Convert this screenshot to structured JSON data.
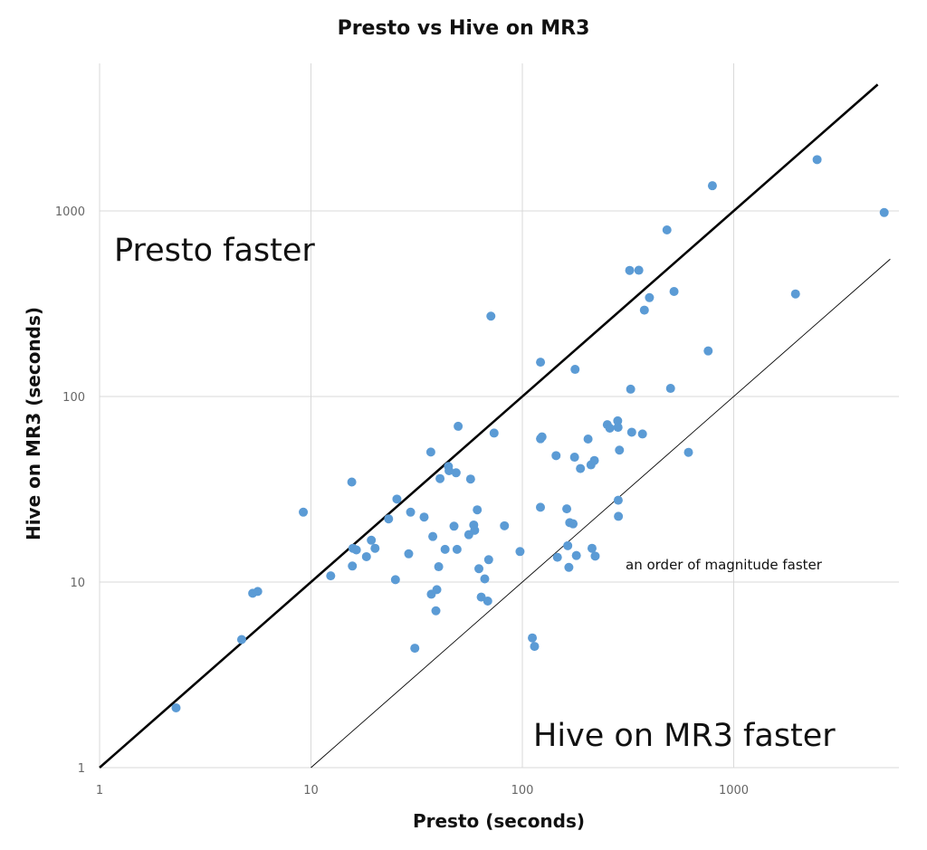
{
  "chart_data": {
    "type": "scatter",
    "title": "Presto vs Hive on MR3",
    "xlabel": "Presto (seconds)",
    "ylabel": "Hive on MR3 (seconds)",
    "xscale": "log",
    "yscale": "log",
    "xlim": [
      1,
      5500
    ],
    "ylim": [
      1,
      5000
    ],
    "x_ticks": [
      "1",
      "10",
      "100",
      "1000"
    ],
    "y_ticks": [
      "1",
      "10",
      "100",
      "1000"
    ],
    "grid": true,
    "legend": "none",
    "reference_lines": [
      {
        "description": "y = x",
        "points": [
          [
            1,
            1
          ],
          [
            4800,
            4800
          ]
        ]
      },
      {
        "description": "y = x / 10",
        "points": [
          [
            10,
            1
          ],
          [
            5500,
            550
          ]
        ]
      }
    ],
    "annotations": [
      {
        "text": "Presto faster"
      },
      {
        "text": "Hive on MR3 faster"
      },
      {
        "text": "an order of magnitude faster"
      }
    ],
    "points": [
      [
        2.3,
        2.1
      ],
      [
        4.7,
        4.9
      ],
      [
        5.3,
        8.7
      ],
      [
        5.6,
        8.9
      ],
      [
        9.2,
        23.8
      ],
      [
        12.4,
        10.8
      ],
      [
        15.6,
        34.6
      ],
      [
        15.7,
        12.2
      ],
      [
        15.8,
        15.2
      ],
      [
        16.4,
        14.9
      ],
      [
        18.3,
        13.7
      ],
      [
        19.3,
        16.8
      ],
      [
        20.1,
        15.2
      ],
      [
        23.3,
        21.9
      ],
      [
        25.1,
        10.3
      ],
      [
        25.5,
        28.0
      ],
      [
        29.0,
        14.2
      ],
      [
        29.6,
        23.8
      ],
      [
        31.0,
        4.4
      ],
      [
        34.3,
        22.4
      ],
      [
        36.9,
        50.2
      ],
      [
        37.1,
        8.6
      ],
      [
        37.7,
        17.6
      ],
      [
        39.0,
        7.0
      ],
      [
        39.4,
        9.1
      ],
      [
        40.2,
        12.1
      ],
      [
        40.8,
        36.1
      ],
      [
        43.1,
        15.0
      ],
      [
        44.7,
        42.0
      ],
      [
        45.0,
        39.8
      ],
      [
        47.5,
        20.0
      ],
      [
        48.6,
        38.8
      ],
      [
        49.1,
        15.0
      ],
      [
        49.7,
        69.1
      ],
      [
        55.8,
        18.0
      ],
      [
        56.9,
        35.9
      ],
      [
        58.9,
        20.3
      ],
      [
        59.5,
        19.0
      ],
      [
        61.2,
        24.5
      ],
      [
        62.3,
        11.8
      ],
      [
        63.9,
        8.3
      ],
      [
        66.4,
        10.4
      ],
      [
        68.6,
        7.9
      ],
      [
        69.3,
        13.2
      ],
      [
        71.0,
        271.0
      ],
      [
        73.5,
        63.5
      ],
      [
        82.3,
        20.1
      ],
      [
        97.5,
        14.6
      ],
      [
        111.5,
        5.0
      ],
      [
        114.2,
        4.5
      ],
      [
        121.8,
        25.3
      ],
      [
        121.9,
        59.2
      ],
      [
        121.9,
        153.0
      ],
      [
        123.9,
        60.6
      ],
      [
        144.4,
        48.0
      ],
      [
        146.5,
        13.6
      ],
      [
        162.2,
        24.8
      ],
      [
        164.0,
        15.7
      ],
      [
        166.0,
        12.0
      ],
      [
        167.5,
        20.9
      ],
      [
        173.8,
        20.6
      ],
      [
        176.6,
        47.1
      ],
      [
        177.6,
        140.0
      ],
      [
        180.1,
        13.9
      ],
      [
        188.3,
        40.9
      ],
      [
        204.6,
        59.0
      ],
      [
        211.2,
        42.8
      ],
      [
        213.6,
        15.2
      ],
      [
        219.1,
        45.2
      ],
      [
        221.1,
        13.8
      ],
      [
        252.3,
        70.5
      ],
      [
        259.4,
        67.5
      ],
      [
        282.6,
        73.9
      ],
      [
        283.6,
        68.2
      ],
      [
        284.2,
        27.6
      ],
      [
        284.8,
        22.6
      ],
      [
        288.0,
        51.4
      ],
      [
        321.9,
        478.0
      ],
      [
        325.4,
        109.5
      ],
      [
        329.2,
        64.2
      ],
      [
        355.7,
        479.0
      ],
      [
        370.1,
        62.8
      ],
      [
        377.8,
        292.0
      ],
      [
        399.3,
        341.0
      ],
      [
        483.2,
        790.0
      ],
      [
        502.6,
        110.6
      ],
      [
        522.0,
        368.0
      ],
      [
        610.8,
        50.0
      ],
      [
        757.2,
        176.0
      ],
      [
        792.6,
        1367.0
      ],
      [
        1960.0,
        357.0
      ],
      [
        2480.0,
        1890.0
      ],
      [
        5150.0,
        980.0
      ]
    ]
  }
}
